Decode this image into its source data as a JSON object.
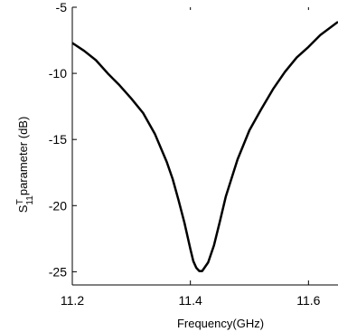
{
  "chart_data": {
    "type": "line",
    "title": "",
    "xlabel": "Frequency(GHz)",
    "ylabel": {
      "symbol": "S",
      "superscript": "T",
      "subscript": "11",
      "rest": "parameter (dB)"
    },
    "xlim": [
      11.2,
      11.65
    ],
    "ylim": [
      -26,
      -5
    ],
    "xticks": [
      {
        "value": 11.2,
        "label": "11.2"
      },
      {
        "value": 11.4,
        "label": "11.4"
      },
      {
        "value": 11.6,
        "label": "11.6"
      }
    ],
    "yticks": [
      {
        "value": -5,
        "label": "-5"
      },
      {
        "value": -10,
        "label": "-10"
      },
      {
        "value": -15,
        "label": "-15"
      },
      {
        "value": -20,
        "label": "-20"
      },
      {
        "value": -25,
        "label": "-25"
      }
    ],
    "grid": false,
    "series": [
      {
        "color": "#000000",
        "x": [
          11.2,
          11.22,
          11.24,
          11.26,
          11.28,
          11.3,
          11.32,
          11.34,
          11.36,
          11.37,
          11.38,
          11.39,
          11.4,
          11.405,
          11.41,
          11.415,
          11.42,
          11.43,
          11.44,
          11.45,
          11.46,
          11.48,
          11.5,
          11.52,
          11.54,
          11.56,
          11.58,
          11.6,
          11.62,
          11.65
        ],
        "y": [
          -7.7,
          -8.3,
          -9.0,
          -10.0,
          -10.9,
          -11.9,
          -13.0,
          -14.6,
          -16.7,
          -18.0,
          -19.6,
          -21.3,
          -23.3,
          -24.2,
          -24.7,
          -24.95,
          -24.95,
          -24.3,
          -23.0,
          -21.2,
          -19.3,
          -16.5,
          -14.3,
          -12.7,
          -11.2,
          -9.9,
          -8.8,
          -8.0,
          -7.1,
          -6.1
        ]
      }
    ]
  }
}
